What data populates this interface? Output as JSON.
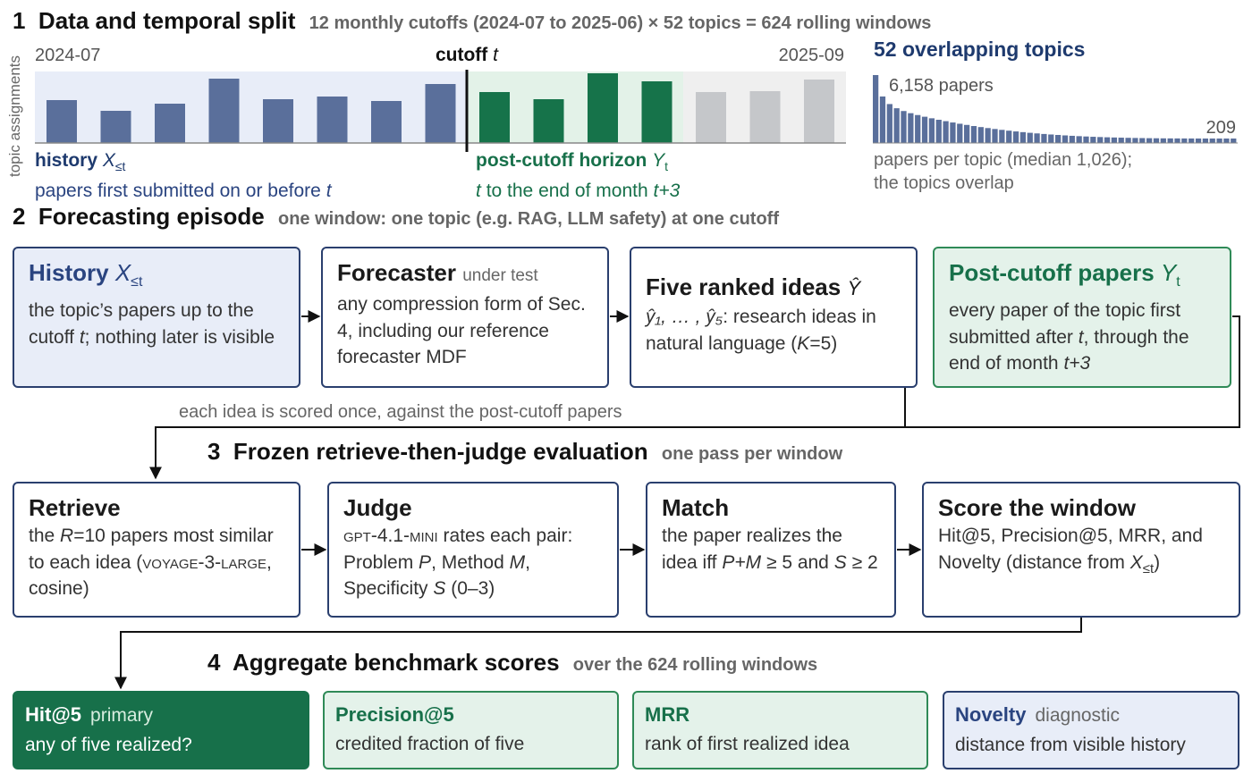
{
  "section1": {
    "num": "1",
    "title": "Data and temporal split",
    "subtitle": "12 monthly cutoffs (2024-07 to 2025-06) × 52 topics = 624 rolling windows"
  },
  "timeline": {
    "y_axis_label": "topic assignments",
    "start_label": "2024-07",
    "end_label": "2025-09",
    "cutoff_label": "cutoff",
    "cutoff_var": "t",
    "history_values": [
      48,
      36,
      44,
      72,
      49,
      52,
      47,
      66
    ],
    "horizon_values": [
      57,
      49,
      78,
      69
    ],
    "future_values": [
      57,
      58,
      71
    ],
    "colors": {
      "history": "#5a6f9b",
      "horizon": "#16734a",
      "future": "#c5c7ca",
      "history_bg": "#e8edf8",
      "horizon_bg": "#e3f2e8",
      "future_bg": "#efefef"
    },
    "history_label": "history",
    "history_var": "X",
    "history_sub": "≤t",
    "history_desc": "papers first submitted on or before",
    "history_desc_var": "t",
    "horizon_label": "post-cutoff horizon",
    "horizon_var": "Y",
    "horizon_sub": "t",
    "horizon_desc_var": "t",
    "horizon_desc_mid": "to the end of month",
    "horizon_desc_end": "t+3"
  },
  "topics": {
    "title": "52 overlapping topics",
    "max_label": "6,158 papers",
    "min_label": "209",
    "caption_line1": "papers per topic (median 1,026);",
    "caption_line2": "the topics overlap"
  },
  "section2": {
    "num": "2",
    "title": "Forecasting episode",
    "subtitle": "one window: one topic (e.g. RAG, LLM safety) at one cutoff"
  },
  "episode": {
    "history": {
      "title": "History",
      "var": "X",
      "sub": "≤t",
      "desc_a": "the topic’s papers up to the cutoff",
      "desc_var": "t",
      "desc_b": "; nothing later is visible"
    },
    "forecaster": {
      "title": "Forecaster",
      "tag": "under test",
      "desc": "any compression form of Sec. 4, including our reference forecaster MDF"
    },
    "ideas": {
      "title": "Five ranked ideas",
      "var": "Ŷ",
      "list_var": "ŷ₁, … , ŷ₅",
      "desc": ": research ideas in natural language (",
      "k_var": "K",
      "k_val": "=5)"
    },
    "post": {
      "title": "Post-cutoff papers",
      "var": "Y",
      "sub": "t",
      "desc_a": "every paper of the topic first submitted after",
      "desc_var": "t",
      "desc_b": ", through the end of month",
      "desc_end": "t+3"
    },
    "note": "each idea is scored once, against the post-cutoff papers"
  },
  "section3": {
    "num": "3",
    "title": "Frozen retrieve-then-judge evaluation",
    "subtitle": "one pass per window"
  },
  "evaluation": {
    "retrieve": {
      "title": "Retrieve",
      "desc_a": "the",
      "r_var": "R",
      "r_val": "=10 papers most similar to each idea (",
      "model": "voyage-3-large",
      "desc_b": ", cosine)"
    },
    "judge": {
      "title": "Judge",
      "model": "gpt-4.1-mini",
      "desc_a": "rates each pair: Problem",
      "p_var": "P",
      "desc_b": ", Method",
      "m_var": "M",
      "desc_c": ", Specificity",
      "s_var": "S",
      "desc_d": "(0–3)"
    },
    "match": {
      "title": "Match",
      "desc_a": "the paper realizes the idea iff",
      "cond_1": "P+M",
      "desc_b": "≥ 5 and",
      "cond_2": "S",
      "desc_c": "≥ 2"
    },
    "score": {
      "title": "Score the window",
      "desc": "Hit@5, Precision@5, MRR, and Novelty (distance from",
      "var": "X",
      "sub": "≤t",
      "close": ")"
    }
  },
  "section4": {
    "num": "4",
    "title": "Aggregate benchmark scores",
    "subtitle": "over the 624 rolling windows"
  },
  "metrics": [
    {
      "name": "Hit@5",
      "tag": "primary",
      "desc": "any of five realized?"
    },
    {
      "name": "Precision@5",
      "tag": "",
      "desc": "credited fraction of five"
    },
    {
      "name": "MRR",
      "tag": "",
      "desc": "rank of first realized idea"
    },
    {
      "name": "Novelty",
      "tag": "diagnostic",
      "desc": "distance from visible history"
    }
  ]
}
